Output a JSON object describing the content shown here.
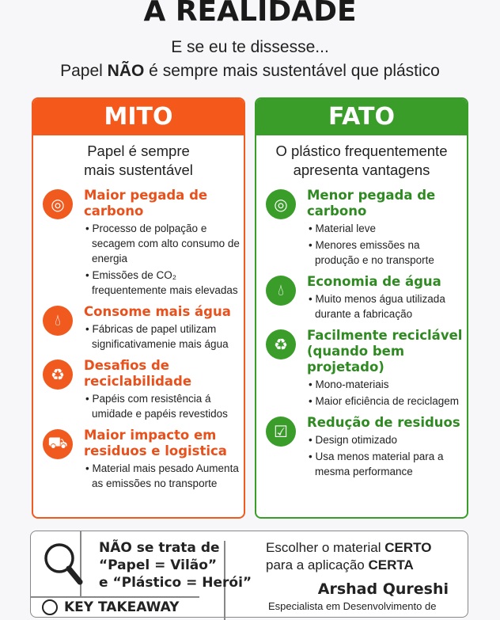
{
  "header": {
    "title": "A REALIDADE",
    "subtitle": "E se eu te dissesse...",
    "claim_pre": "Papel ",
    "claim_bold": "NÃO",
    "claim_post": " é sempre mais sustentável que plástico"
  },
  "colors": {
    "mito": "#f05a1e",
    "fato": "#3a9d2a"
  },
  "mito": {
    "label": "MITO",
    "subtitle_1": "Papel é sempre",
    "subtitle_2": "mais sustentável",
    "items": [
      {
        "icon": "globe-icon",
        "title": "Maior pegada de carbono",
        "bullets": [
          "• Processo de polpação e secagem com alto consumo de energia",
          "• Emissões de CO₂ frequentemente mais elevadas"
        ]
      },
      {
        "icon": "water-drop-icon",
        "title": "Consome mais água",
        "bullets": [
          "• Fábricas de papel utilizam significativamenie mais água"
        ]
      },
      {
        "icon": "recycle-icon",
        "title": "Desafios de reciclabilidade",
        "bullets": [
          "• Papéis com resistência á umiḋade e papéis revestidos"
        ]
      },
      {
        "icon": "truck-icon",
        "title": "Maior impacto em residuos e logistica",
        "bullets": [
          "• Material mais pesado Aumenta as emissões no transporte"
        ]
      }
    ]
  },
  "fato": {
    "label": "FATO",
    "subtitle_1": "O plástico frequentemente",
    "subtitle_2": "apresenta vantagens",
    "items": [
      {
        "icon": "globe-icon",
        "title": "Menor pegada de carbono",
        "bullets": [
          "• Material leve",
          "• Menores emissões na produção e no transporte"
        ]
      },
      {
        "icon": "water-drop-icon",
        "title": "Economia de água",
        "bullets": [
          "• Muito menos água utilizada durante a fabricação"
        ]
      },
      {
        "icon": "recycle-icon",
        "title": "Facilmente reciclável (quando bem projetado)",
        "bullets": [
          "• Mono-materiais",
          "• Maior eficiência de reciclagem"
        ]
      },
      {
        "icon": "checkbox-icon",
        "title": "Redução de residuos",
        "bullets": [
          "• Design otimizado",
          "• Usa menos material para a mesma performance"
        ]
      }
    ]
  },
  "bottom": {
    "line1": "NÃO se trata de",
    "line2": "“Papel = Vilão”",
    "line3": "e “Plástico = Herói”",
    "takeaway": "KEY TAKEAWAY",
    "right_pre1": "Escolher o material ",
    "right_bold1": "CERTO",
    "right_pre2": "para a aplicação ",
    "right_bold2": "CERTA",
    "author": "Arshad Qureshi",
    "role": "Especialista em Desenvolvimento de"
  }
}
